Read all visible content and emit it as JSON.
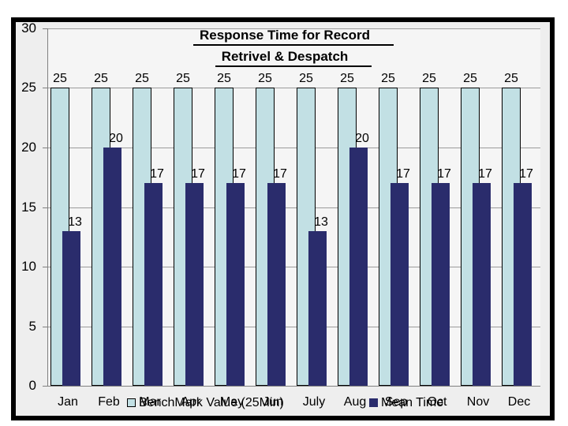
{
  "chart_data": {
    "type": "bar",
    "title": "Response Time for Record Retrivel & Despatch",
    "title_lines": [
      "Response Time for Record",
      "Retrivel & Despatch"
    ],
    "categories": [
      "Jan",
      "Feb",
      "Mar",
      "Apr",
      "May",
      "Jun",
      "July",
      "Aug",
      "Sep",
      "Oct",
      "Nov",
      "Dec"
    ],
    "series": [
      {
        "name": "BenchMark Value (25Min)",
        "color": "#c2e0e4",
        "border_color": "#000000",
        "values": [
          25,
          25,
          25,
          25,
          25,
          25,
          25,
          25,
          25,
          25,
          25,
          25
        ]
      },
      {
        "name": "Mean Time",
        "color": "#2a2c6c",
        "values": [
          13,
          20,
          17,
          17,
          17,
          17,
          13,
          20,
          17,
          17,
          17,
          17
        ]
      }
    ],
    "xlabel": "",
    "ylabel": "",
    "ylim": [
      0,
      30
    ],
    "yticks": [
      0,
      5,
      10,
      15,
      20,
      25,
      30
    ],
    "grid": "horizontal",
    "legend_position": "bottom",
    "data_labels": true
  },
  "colors": {
    "chart_background": "#eeeeee",
    "plot_background": "#f5f5f5",
    "gridline": "#9b9b9b",
    "axis": "#808080",
    "frame": "#000000",
    "text": "#000000"
  }
}
